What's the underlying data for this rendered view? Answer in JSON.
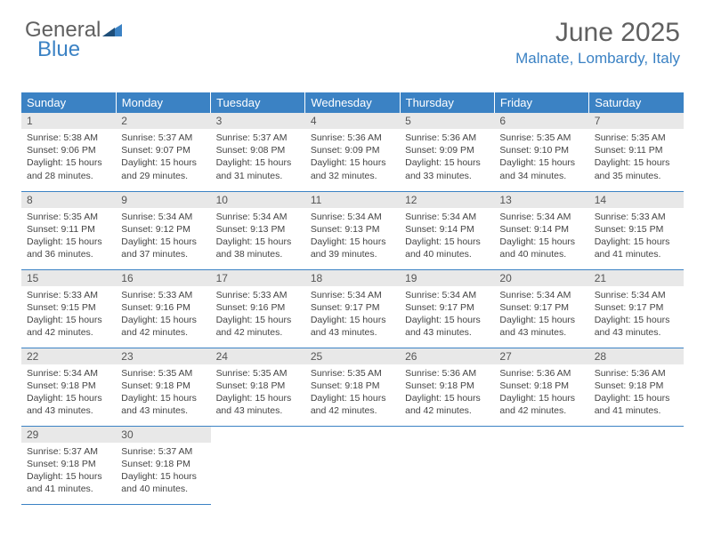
{
  "logo": {
    "text1": "General",
    "text2": "Blue"
  },
  "header": {
    "month_title": "June 2025",
    "location": "Malnate, Lombardy, Italy"
  },
  "colors": {
    "header_bg": "#3b82c4",
    "header_text": "#ffffff",
    "daynum_bg": "#e8e8e8",
    "rule": "#3b82c4",
    "body_text": "#444444",
    "logo_gray": "#606060",
    "logo_blue": "#3b82c4"
  },
  "columns": [
    "Sunday",
    "Monday",
    "Tuesday",
    "Wednesday",
    "Thursday",
    "Friday",
    "Saturday"
  ],
  "days": [
    {
      "n": "1",
      "sr": "5:38 AM",
      "ss": "9:06 PM",
      "dl": "15 hours and 28 minutes."
    },
    {
      "n": "2",
      "sr": "5:37 AM",
      "ss": "9:07 PM",
      "dl": "15 hours and 29 minutes."
    },
    {
      "n": "3",
      "sr": "5:37 AM",
      "ss": "9:08 PM",
      "dl": "15 hours and 31 minutes."
    },
    {
      "n": "4",
      "sr": "5:36 AM",
      "ss": "9:09 PM",
      "dl": "15 hours and 32 minutes."
    },
    {
      "n": "5",
      "sr": "5:36 AM",
      "ss": "9:09 PM",
      "dl": "15 hours and 33 minutes."
    },
    {
      "n": "6",
      "sr": "5:35 AM",
      "ss": "9:10 PM",
      "dl": "15 hours and 34 minutes."
    },
    {
      "n": "7",
      "sr": "5:35 AM",
      "ss": "9:11 PM",
      "dl": "15 hours and 35 minutes."
    },
    {
      "n": "8",
      "sr": "5:35 AM",
      "ss": "9:11 PM",
      "dl": "15 hours and 36 minutes."
    },
    {
      "n": "9",
      "sr": "5:34 AM",
      "ss": "9:12 PM",
      "dl": "15 hours and 37 minutes."
    },
    {
      "n": "10",
      "sr": "5:34 AM",
      "ss": "9:13 PM",
      "dl": "15 hours and 38 minutes."
    },
    {
      "n": "11",
      "sr": "5:34 AM",
      "ss": "9:13 PM",
      "dl": "15 hours and 39 minutes."
    },
    {
      "n": "12",
      "sr": "5:34 AM",
      "ss": "9:14 PM",
      "dl": "15 hours and 40 minutes."
    },
    {
      "n": "13",
      "sr": "5:34 AM",
      "ss": "9:14 PM",
      "dl": "15 hours and 40 minutes."
    },
    {
      "n": "14",
      "sr": "5:33 AM",
      "ss": "9:15 PM",
      "dl": "15 hours and 41 minutes."
    },
    {
      "n": "15",
      "sr": "5:33 AM",
      "ss": "9:15 PM",
      "dl": "15 hours and 42 minutes."
    },
    {
      "n": "16",
      "sr": "5:33 AM",
      "ss": "9:16 PM",
      "dl": "15 hours and 42 minutes."
    },
    {
      "n": "17",
      "sr": "5:33 AM",
      "ss": "9:16 PM",
      "dl": "15 hours and 42 minutes."
    },
    {
      "n": "18",
      "sr": "5:34 AM",
      "ss": "9:17 PM",
      "dl": "15 hours and 43 minutes."
    },
    {
      "n": "19",
      "sr": "5:34 AM",
      "ss": "9:17 PM",
      "dl": "15 hours and 43 minutes."
    },
    {
      "n": "20",
      "sr": "5:34 AM",
      "ss": "9:17 PM",
      "dl": "15 hours and 43 minutes."
    },
    {
      "n": "21",
      "sr": "5:34 AM",
      "ss": "9:17 PM",
      "dl": "15 hours and 43 minutes."
    },
    {
      "n": "22",
      "sr": "5:34 AM",
      "ss": "9:18 PM",
      "dl": "15 hours and 43 minutes."
    },
    {
      "n": "23",
      "sr": "5:35 AM",
      "ss": "9:18 PM",
      "dl": "15 hours and 43 minutes."
    },
    {
      "n": "24",
      "sr": "5:35 AM",
      "ss": "9:18 PM",
      "dl": "15 hours and 43 minutes."
    },
    {
      "n": "25",
      "sr": "5:35 AM",
      "ss": "9:18 PM",
      "dl": "15 hours and 42 minutes."
    },
    {
      "n": "26",
      "sr": "5:36 AM",
      "ss": "9:18 PM",
      "dl": "15 hours and 42 minutes."
    },
    {
      "n": "27",
      "sr": "5:36 AM",
      "ss": "9:18 PM",
      "dl": "15 hours and 42 minutes."
    },
    {
      "n": "28",
      "sr": "5:36 AM",
      "ss": "9:18 PM",
      "dl": "15 hours and 41 minutes."
    },
    {
      "n": "29",
      "sr": "5:37 AM",
      "ss": "9:18 PM",
      "dl": "15 hours and 41 minutes."
    },
    {
      "n": "30",
      "sr": "5:37 AM",
      "ss": "9:18 PM",
      "dl": "15 hours and 40 minutes."
    }
  ],
  "labels": {
    "sunrise": "Sunrise:",
    "sunset": "Sunset:",
    "daylight": "Daylight:"
  }
}
